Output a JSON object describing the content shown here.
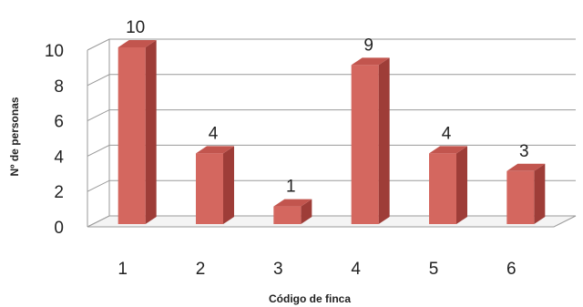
{
  "chart_data": {
    "type": "bar",
    "categories": [
      "1",
      "2",
      "3",
      "4",
      "5",
      "6"
    ],
    "values": [
      10,
      4,
      1,
      9,
      4,
      3
    ],
    "data_labels": [
      "10",
      "4",
      "1",
      "9",
      "4",
      "3"
    ],
    "xlabel": "Código de finca",
    "ylabel": "Nº de personas",
    "ylim": [
      0,
      10
    ],
    "yticks": [
      "0",
      "2",
      "4",
      "6",
      "8",
      "10"
    ],
    "grid": true,
    "style": "3d",
    "colors": {
      "bar_front": "#d4675f",
      "bar_side": "#9e3d38",
      "bar_top": "#c2554e",
      "grid": "#9a9a9a"
    }
  }
}
